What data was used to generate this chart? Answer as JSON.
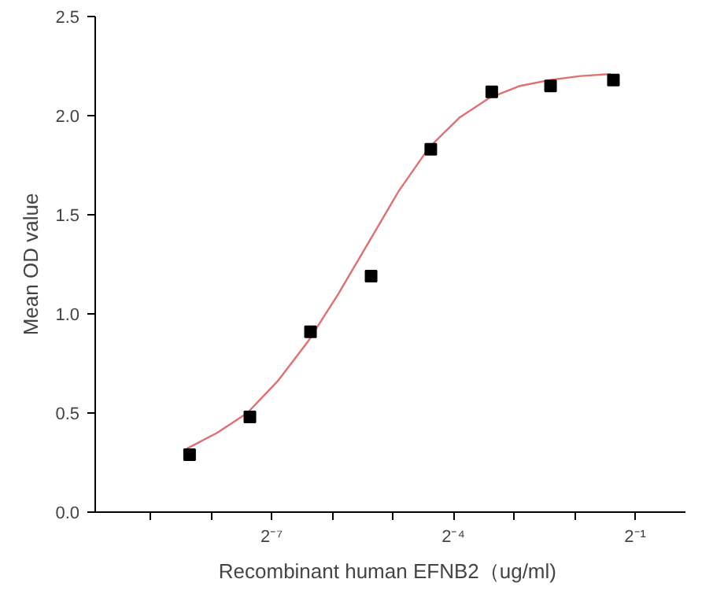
{
  "chart_data": {
    "type": "scatter",
    "xlabel": "Recombinant human  EFNB2（ug/ml)",
    "ylabel": "Mean OD value",
    "log": "x",
    "grid": false,
    "xlim": [
      0.00104,
      0.889
    ],
    "xticks": [
      {
        "value": 0.001953125,
        "label": null
      },
      {
        "value": 0.00390625,
        "label": null
      },
      {
        "value": 0.0078125,
        "label": "2⁻⁷"
      },
      {
        "value": 0.015625,
        "label": null
      },
      {
        "value": 0.03125,
        "label": null
      },
      {
        "value": 0.0625,
        "label": "2⁻⁴"
      },
      {
        "value": 0.125,
        "label": null
      },
      {
        "value": 0.25,
        "label": null
      },
      {
        "value": 0.5,
        "label": "2⁻¹"
      }
    ],
    "ylim": [
      0,
      2.5
    ],
    "yticks": [
      {
        "value": 0,
        "label": "0.0"
      },
      {
        "value": 0.5,
        "label": "0.5"
      },
      {
        "value": 1,
        "label": "1.0"
      },
      {
        "value": 1.5,
        "label": "1.5"
      },
      {
        "value": 2,
        "label": "2.0"
      },
      {
        "value": 2.5,
        "label": "2.5"
      }
    ],
    "series": [
      {
        "marker": "square",
        "color": "#000000",
        "x": [
          0.00306,
          0.0061,
          0.0122,
          0.0244,
          0.0483,
          0.097,
          0.19,
          0.39
        ],
        "values": [
          0.29,
          0.48,
          0.91,
          1.19,
          1.83,
          2.12,
          2.15,
          2.18
        ]
      },
      {
        "type": "line",
        "marker": "none",
        "line_style": "solid",
        "color": "#e07070",
        "x": [
          0.00296,
          0.00419,
          0.00592,
          0.00837,
          0.01184,
          0.01675,
          0.02368,
          0.0335,
          0.0474,
          0.067,
          0.0947,
          0.134,
          0.189,
          0.268,
          0.379
        ],
        "values": [
          0.32,
          0.4,
          0.5,
          0.66,
          0.86,
          1.1,
          1.36,
          1.62,
          1.84,
          1.99,
          2.09,
          2.15,
          2.18,
          2.2,
          2.21
        ]
      }
    ]
  }
}
